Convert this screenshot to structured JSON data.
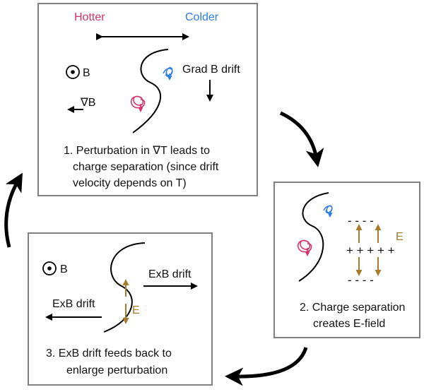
{
  "colors": {
    "hotter": "#d6336c",
    "colder": "#2b7de9",
    "efield": "#a87c2a",
    "box_border": "#808080",
    "ink": "#000000"
  },
  "panel1": {
    "hotter_label": "Hotter",
    "colder_label": "Colder",
    "b_label": "B",
    "gradb_label": "∇B",
    "gradb_drift_label": "Grad B drift",
    "caption_line1": "1. Perturbation in ∇T leads to",
    "caption_line2": "charge separation (since drift",
    "caption_line3": "velocity depends on T)"
  },
  "panel2": {
    "minus_top": "- - - -",
    "plus_mid": "+ + + + +",
    "minus_bottom": "- - - -",
    "e_label": "E",
    "caption_line1": "2. Charge separation",
    "caption_line2": "creates E-field"
  },
  "panel3": {
    "b_label": "B",
    "exb_right_label": "ExB drift",
    "exb_left_label": "ExB drift",
    "e_label": "E",
    "caption_line1": "3. ExB drift feeds back to",
    "caption_line2": "enlarge perturbation"
  }
}
